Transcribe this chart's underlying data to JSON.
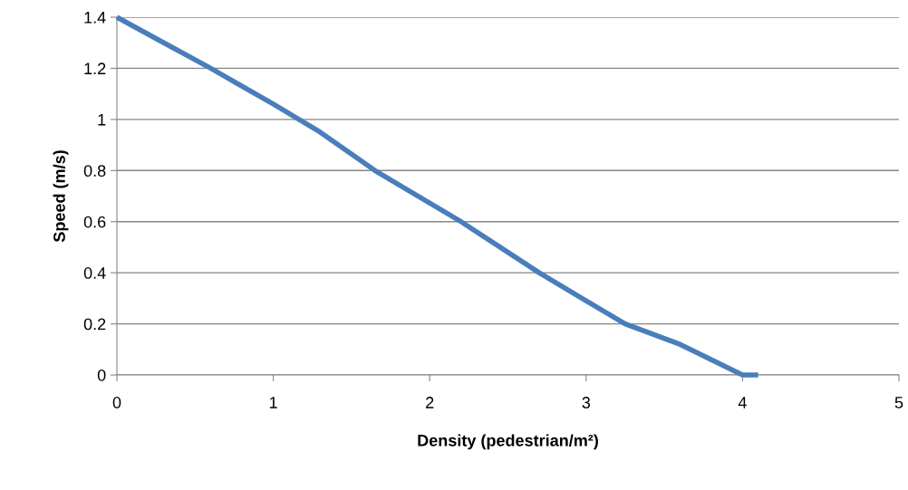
{
  "chart_data": {
    "type": "line",
    "xlabel": "Density (pedestrian/m²)",
    "ylabel": "Speed (m/s)",
    "x": [
      0,
      0.3,
      0.6,
      1,
      1.3,
      1.65,
      2.2,
      2.7,
      3,
      3.25,
      3.6,
      4,
      4.1
    ],
    "series": [
      {
        "color": "#4a7ebb",
        "values": [
          1.4,
          1.3,
          1.2,
          1.06,
          0.95,
          0.8,
          0.6,
          0.4,
          0.29,
          0.2,
          0.12,
          0,
          0
        ]
      }
    ],
    "xlim": [
      0,
      5
    ],
    "xticks": [
      0,
      1,
      2,
      3,
      4,
      5
    ],
    "ylim": [
      0,
      1.4
    ],
    "yticks": [
      0,
      0.2,
      0.4,
      0.6,
      0.8,
      1,
      1.2,
      1.4
    ],
    "grid": "y",
    "marker": "none",
    "line_style": "solid"
  }
}
